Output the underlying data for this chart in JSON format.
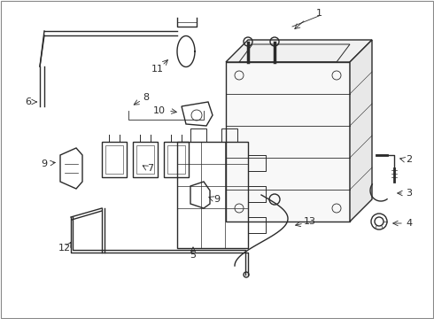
{
  "bg_color": "#ffffff",
  "lc": "#2a2a2a",
  "figsize": [
    4.9,
    3.6
  ],
  "dpi": 100,
  "xlim": [
    0,
    490
  ],
  "ylim": [
    0,
    360
  ]
}
